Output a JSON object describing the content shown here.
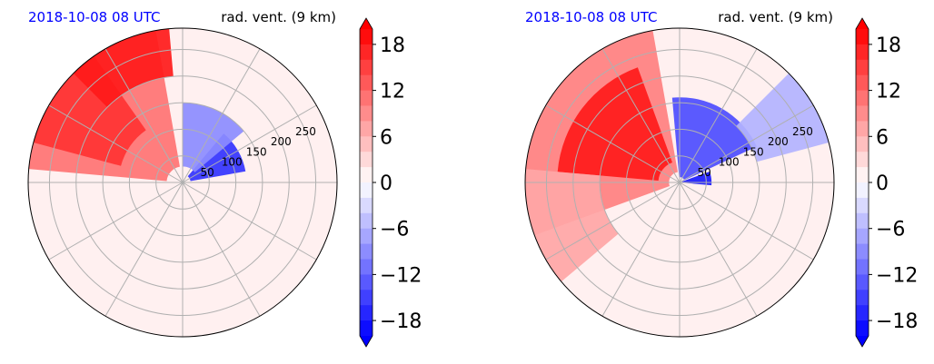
{
  "chart_data": [
    {
      "type": "heatmap",
      "projection": "polar",
      "title_left": "2018-10-08 08 UTC",
      "title_right": "rad. vent. (9 km)",
      "title_left_color": "#0000ff",
      "radial_ticks": [
        "50",
        "100",
        "150",
        "200",
        "250"
      ],
      "radial_tick_values": [
        50,
        100,
        150,
        200,
        250
      ],
      "r_max": 290,
      "angular_grid_deg": [
        0,
        30,
        60,
        90,
        120,
        150,
        180,
        210,
        240,
        270,
        300,
        330
      ],
      "colorbar": {
        "ticks": [
          "18",
          "12",
          "6",
          "0",
          "−6",
          "−12",
          "−18"
        ],
        "tick_values": [
          18,
          12,
          6,
          0,
          -6,
          -12,
          -18
        ],
        "range": [
          -20,
          20
        ],
        "extend": "both",
        "cmap": "bwr",
        "color_low": "#0000ff",
        "color_high": "#ff0000"
      },
      "features": [
        {
          "kind": "positive",
          "theta": [
            100,
            175
          ],
          "r": [
            30,
            290
          ],
          "value": 11
        },
        {
          "kind": "positive",
          "theta": [
            125,
            165
          ],
          "r": [
            120,
            290
          ],
          "value": 16
        },
        {
          "kind": "positive",
          "theta": [
            95,
            135
          ],
          "r": [
            200,
            290
          ],
          "value": 18
        },
        {
          "kind": "negative",
          "theta": [
            10,
            50
          ],
          "r": [
            15,
            120
          ],
          "value": -16
        },
        {
          "kind": "negative",
          "theta": [
            40,
            90
          ],
          "r": [
            30,
            150
          ],
          "value": -9
        }
      ]
    },
    {
      "type": "heatmap",
      "projection": "polar",
      "title_left": "2018-10-08 08 UTC",
      "title_right": "rad. vent. (9 km)",
      "title_left_color": "#0000ff",
      "radial_ticks": [
        "50",
        "100",
        "150",
        "200",
        "250"
      ],
      "radial_tick_values": [
        50,
        100,
        150,
        200,
        250
      ],
      "r_max": 290,
      "angular_grid_deg": [
        0,
        30,
        60,
        90,
        120,
        150,
        180,
        210,
        240,
        270,
        300,
        330
      ],
      "colorbar": {
        "ticks": [
          "18",
          "12",
          "6",
          "0",
          "−6",
          "−12",
          "−18"
        ],
        "tick_values": [
          18,
          12,
          6,
          0,
          -6,
          -12,
          -18
        ],
        "range": [
          -20,
          20
        ],
        "extend": "both",
        "cmap": "bwr",
        "color_low": "#0000ff",
        "color_high": "#ff0000"
      },
      "features": [
        {
          "kind": "positive",
          "theta": [
            100,
            200
          ],
          "r": [
            20,
            290
          ],
          "value": 10
        },
        {
          "kind": "positive",
          "theta": [
            110,
            175
          ],
          "r": [
            40,
            230
          ],
          "value": 18
        },
        {
          "kind": "positive",
          "theta": [
            175,
            220
          ],
          "r": [
            150,
            290
          ],
          "value": 7
        },
        {
          "kind": "negative",
          "theta": [
            25,
            95
          ],
          "r": [
            10,
            160
          ],
          "value": -14
        },
        {
          "kind": "negative",
          "theta": [
            -5,
            20
          ],
          "r": [
            5,
            60
          ],
          "value": -18
        },
        {
          "kind": "negative",
          "theta": [
            15,
            45
          ],
          "r": [
            150,
            290
          ],
          "value": -6
        }
      ]
    }
  ]
}
